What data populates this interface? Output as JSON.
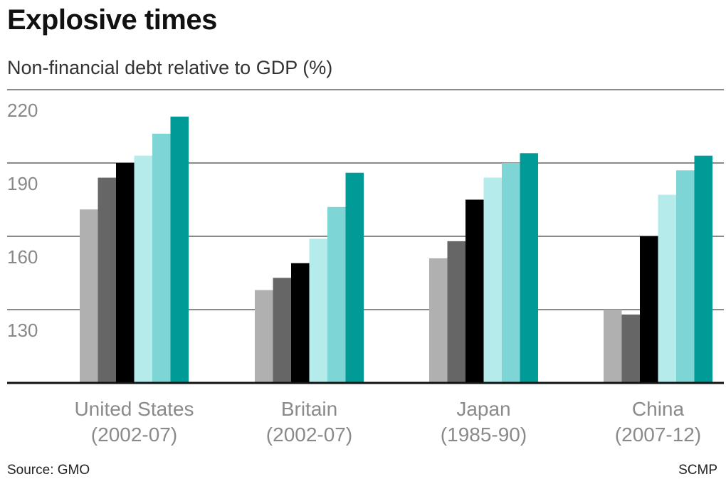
{
  "chart_data": {
    "type": "bar",
    "title": "Explosive times",
    "subtitle": "Non-financial debt relative to GDP (%)",
    "categories": [
      [
        "United States",
        "(2002-07)"
      ],
      [
        "Britain",
        "(2002-07)"
      ],
      [
        "Japan",
        "(1985-90)"
      ],
      [
        "China",
        "(2007-12)"
      ]
    ],
    "series": [
      {
        "color": "#b0b0b0",
        "values": [
          171,
          138,
          151,
          130
        ]
      },
      {
        "color": "#666666",
        "values": [
          184,
          143,
          158,
          128
        ]
      },
      {
        "color": "#000000",
        "values": [
          190,
          149,
          175,
          160
        ]
      },
      {
        "color": "#b5ebeb",
        "values": [
          193,
          159,
          184,
          177
        ]
      },
      {
        "color": "#7dd5d5",
        "values": [
          202,
          172,
          190,
          187
        ]
      },
      {
        "color": "#009b96",
        "values": [
          209,
          186,
          194,
          193
        ]
      }
    ],
    "yticks": [
      130,
      160,
      190,
      220
    ],
    "ylim": [
      100,
      220
    ],
    "grid": true,
    "legend": "none",
    "source": "Source: GMO",
    "credit": "SCMP"
  }
}
